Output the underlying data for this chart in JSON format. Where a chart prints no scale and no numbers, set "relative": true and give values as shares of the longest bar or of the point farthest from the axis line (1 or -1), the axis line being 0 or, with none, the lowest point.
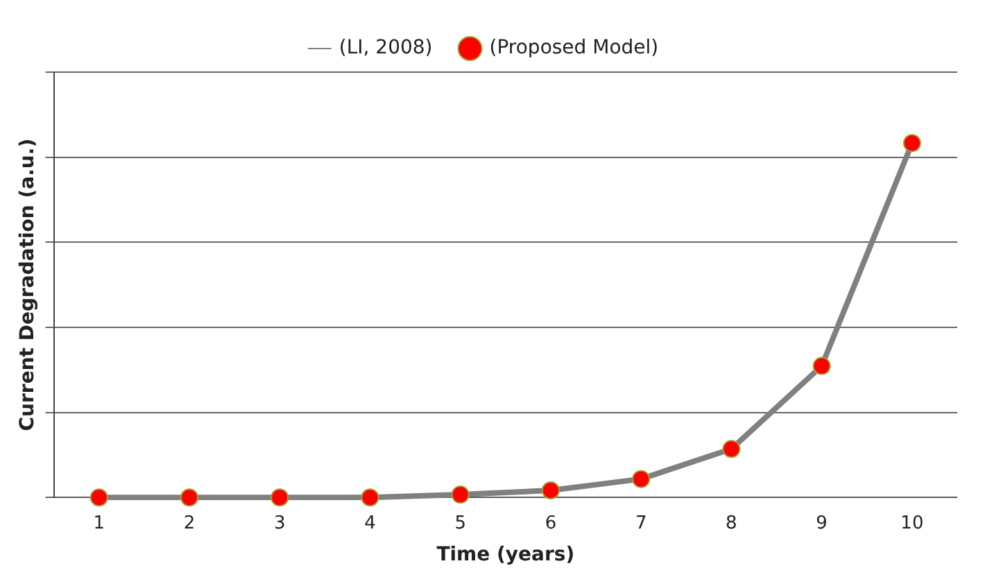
{
  "chart_data": {
    "type": "line",
    "xlabel": "Time (years)",
    "ylabel": "Current Degradation (a.u.)",
    "categories": [
      "1",
      "2",
      "3",
      "4",
      "5",
      "6",
      "7",
      "8",
      "9",
      "10"
    ],
    "relative": true,
    "grid": "y",
    "legend": "top",
    "series": [
      {
        "name": "(LI, 2008)",
        "color": "#808080",
        "marker": "none",
        "line_style": "solid",
        "values": [
          0,
          0,
          0,
          0,
          0.008,
          0.02,
          0.052,
          0.137,
          0.371,
          1
        ]
      },
      {
        "name": "(Proposed Model)",
        "type": "scatter",
        "color": "#ff0000",
        "marker": "circle",
        "values": [
          0,
          0,
          0,
          0,
          0.008,
          0.02,
          0.052,
          0.137,
          0.371,
          1
        ]
      }
    ]
  }
}
